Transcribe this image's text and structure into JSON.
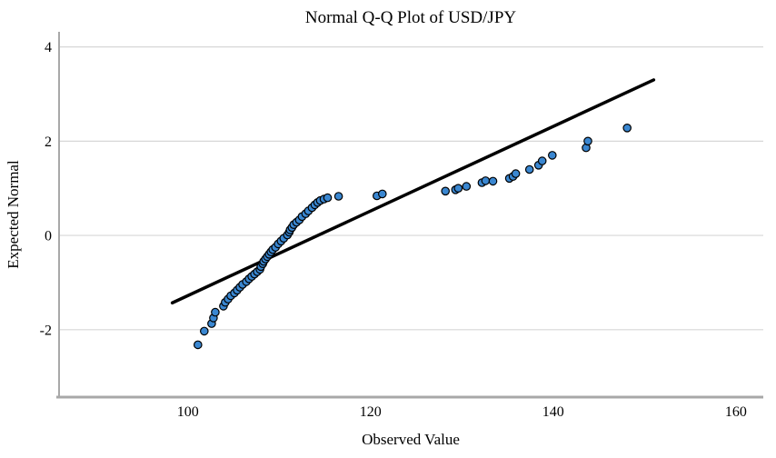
{
  "chart_data": {
    "type": "scatter",
    "title": "Normal Q-Q Plot of USD/JPY",
    "xlabel": "Observed Value",
    "ylabel": "Expected Normal",
    "xlim": [
      85.9,
      163.0
    ],
    "ylim": [
      -3.43,
      4.32
    ],
    "x_ticks": [
      100,
      120,
      140,
      160
    ],
    "y_ticks": [
      4,
      2,
      0,
      -2
    ],
    "grid": "horizontal-only",
    "legend": "none",
    "colors": {
      "point_fill": "#3a87d1",
      "point_stroke": "#000000",
      "reference_line": "#000000",
      "grid": "#d7d7d7",
      "axis": "#a8a8a8",
      "background": "#ffffff"
    },
    "reference_line": {
      "name": "normal-reference-line",
      "color": "#000000",
      "points": [
        [
          98.3,
          -1.43
        ],
        [
          151.0,
          3.3
        ]
      ]
    },
    "points": [
      [
        101.1,
        -2.32
      ],
      [
        101.8,
        -2.03
      ],
      [
        102.6,
        -1.87
      ],
      [
        102.8,
        -1.75
      ],
      [
        103.0,
        -1.63
      ],
      [
        103.9,
        -1.5
      ],
      [
        104.1,
        -1.42
      ],
      [
        104.4,
        -1.35
      ],
      [
        104.7,
        -1.28
      ],
      [
        105.1,
        -1.22
      ],
      [
        105.4,
        -1.16
      ],
      [
        105.7,
        -1.1
      ],
      [
        106.0,
        -1.04
      ],
      [
        106.4,
        -0.98
      ],
      [
        106.7,
        -0.92
      ],
      [
        107.0,
        -0.87
      ],
      [
        107.3,
        -0.82
      ],
      [
        107.6,
        -0.77
      ],
      [
        107.9,
        -0.72
      ],
      [
        108.0,
        -0.66
      ],
      [
        108.2,
        -0.6
      ],
      [
        108.3,
        -0.55
      ],
      [
        108.5,
        -0.5
      ],
      [
        108.7,
        -0.45
      ],
      [
        108.9,
        -0.4
      ],
      [
        109.1,
        -0.35
      ],
      [
        109.3,
        -0.3
      ],
      [
        109.6,
        -0.25
      ],
      [
        109.9,
        -0.18
      ],
      [
        110.2,
        -0.12
      ],
      [
        110.5,
        -0.06
      ],
      [
        110.9,
        0.01
      ],
      [
        111.1,
        0.07
      ],
      [
        111.2,
        0.12
      ],
      [
        111.4,
        0.17
      ],
      [
        111.6,
        0.23
      ],
      [
        111.9,
        0.28
      ],
      [
        112.2,
        0.33
      ],
      [
        112.5,
        0.4
      ],
      [
        112.9,
        0.46
      ],
      [
        113.2,
        0.52
      ],
      [
        113.6,
        0.59
      ],
      [
        113.9,
        0.65
      ],
      [
        114.2,
        0.7
      ],
      [
        114.5,
        0.74
      ],
      [
        114.9,
        0.77
      ],
      [
        115.3,
        0.8
      ],
      [
        116.5,
        0.83
      ],
      [
        120.7,
        0.84
      ],
      [
        121.3,
        0.88
      ],
      [
        128.2,
        0.94
      ],
      [
        129.3,
        0.97
      ],
      [
        129.6,
        1.0
      ],
      [
        130.5,
        1.04
      ],
      [
        132.2,
        1.12
      ],
      [
        132.6,
        1.16
      ],
      [
        133.4,
        1.15
      ],
      [
        135.2,
        1.21
      ],
      [
        135.6,
        1.25
      ],
      [
        135.9,
        1.31
      ],
      [
        137.4,
        1.4
      ],
      [
        138.4,
        1.49
      ],
      [
        138.8,
        1.58
      ],
      [
        139.9,
        1.7
      ],
      [
        143.6,
        1.86
      ],
      [
        143.8,
        2.0
      ],
      [
        148.1,
        2.28
      ]
    ]
  }
}
